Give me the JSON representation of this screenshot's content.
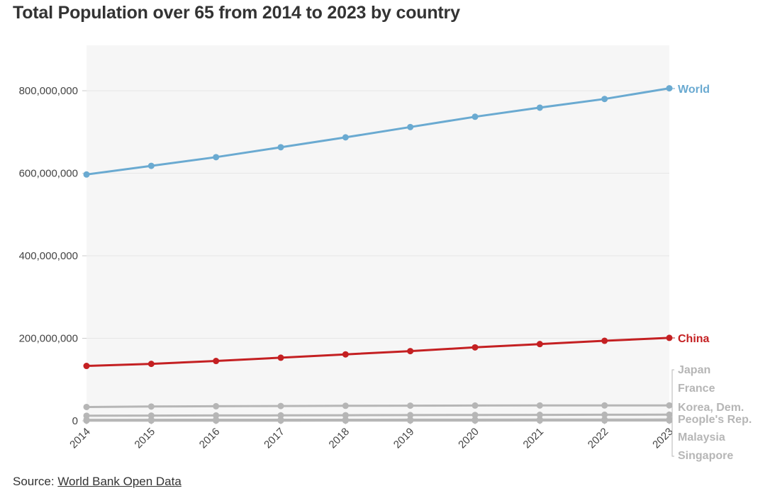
{
  "chart_data": {
    "type": "line",
    "title": "Total Population over 65 from 2014 to 2023 by country",
    "x": [
      2014,
      2015,
      2016,
      2017,
      2018,
      2019,
      2020,
      2021,
      2022,
      2023
    ],
    "xlabel": "",
    "ylabel": "",
    "ylim": [
      0,
      910000000
    ],
    "yticks": [
      0,
      200000000,
      400000000,
      600000000,
      800000000
    ],
    "ytick_labels": [
      "0",
      "200,000,000",
      "400,000,000",
      "600,000,000",
      "800,000,000"
    ],
    "grid": true,
    "series": [
      {
        "name": "World",
        "color": "#6aaad1",
        "values": [
          597000000,
          618000000,
          639000000,
          663000000,
          687000000,
          712000000,
          737000000,
          759000000,
          780000000,
          806000000
        ]
      },
      {
        "name": "China",
        "color": "#c42022",
        "values": [
          133000000,
          138000000,
          145000000,
          153000000,
          161000000,
          169000000,
          178000000,
          186000000,
          194000000,
          201000000
        ]
      },
      {
        "name": "Japan",
        "color": "#b6b6b6",
        "values": [
          33500000,
          34600000,
          35400000,
          35900000,
          36400000,
          36800000,
          37100000,
          37200000,
          37300000,
          37400000
        ]
      },
      {
        "name": "France",
        "color": "#b6b6b6",
        "values": [
          12300000,
          12700000,
          13000000,
          13300000,
          13600000,
          13900000,
          14200000,
          14500000,
          14800000,
          15000000
        ]
      },
      {
        "name": "Korea, Dem. People's Rep.",
        "color": "#b6b6b6",
        "values": [
          2400000,
          2450000,
          2500000,
          2560000,
          2630000,
          2700000,
          2780000,
          2860000,
          2950000,
          3050000
        ]
      },
      {
        "name": "Malaysia",
        "color": "#b6b6b6",
        "values": [
          1800000,
          1900000,
          2000000,
          2100000,
          2200000,
          2300000,
          2400000,
          2500000,
          2650000,
          2800000
        ]
      },
      {
        "name": "Singapore",
        "color": "#b6b6b6",
        "values": [
          480000,
          510000,
          550000,
          590000,
          630000,
          680000,
          730000,
          780000,
          820000,
          870000
        ]
      }
    ]
  },
  "labels": {
    "world": "World",
    "china": "China",
    "japan": "Japan",
    "france": "France",
    "korea_line1": "Korea, Dem.",
    "korea_line2": "People's Rep.",
    "malaysia": "Malaysia",
    "singapore": "Singapore"
  },
  "footer": {
    "source_prefix": "Source: ",
    "source_link": "World Bank Open Data"
  }
}
